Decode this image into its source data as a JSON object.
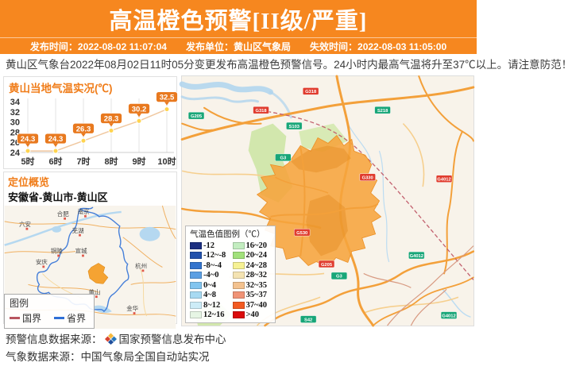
{
  "header": {
    "title": "高温橙色预警[II级/严重]",
    "issue_time_label": "发布时间：",
    "issue_time": "2022-08-02 11:07:04",
    "issuer_label": "发布单位：",
    "issuer": "黄山区气象局",
    "expire_time_label": "失效时间：",
    "expire_time": "2022-08-03 11:05:00"
  },
  "warning_text": "黄山区气象台2022年08月02日11时05分变更发布高温橙色预警信号。24小时内最高气温将升至37℃以上。请注意防范！",
  "chart_data": {
    "type": "line",
    "title": "黄山当地气温实况(℃)",
    "categories": [
      "5时",
      "6时",
      "7时",
      "8时",
      "9时",
      "10时"
    ],
    "values": [
      24.3,
      24.3,
      26.3,
      28.3,
      30.2,
      32.5
    ],
    "ylim": [
      24,
      34
    ],
    "yticks": [
      24,
      26,
      28,
      30,
      32,
      34
    ],
    "xlabel": "",
    "ylabel": "",
    "grid": "vertical-only",
    "line_color": "#f0c8a0",
    "marker_color": "#ffd44f",
    "label_bg": "#e8791f"
  },
  "location": {
    "title": "定位概览",
    "path": "安徽省-黄山市-黄山区",
    "cities": [
      "南京",
      "合肥",
      "六安",
      "芜湖",
      "铜陵",
      "宣城",
      "安庆",
      "黄山",
      "杭州",
      "金华"
    ],
    "legend": {
      "title": "图例",
      "items": [
        {
          "label": "国界",
          "color": "#b85560"
        },
        {
          "label": "省界",
          "color": "#2f6fd6"
        }
      ]
    }
  },
  "main_map": {
    "temp_legend": {
      "title": "气温色值图例（℃）",
      "items": [
        {
          "range": "-12",
          "color": "#1c2f80"
        },
        {
          "range": "-12~-8",
          "color": "#2251ab"
        },
        {
          "range": "-8~-4",
          "color": "#3374cd"
        },
        {
          "range": "-4~0",
          "color": "#5b9fe3"
        },
        {
          "range": "0~4",
          "color": "#82c5ef"
        },
        {
          "range": "4~8",
          "color": "#a8daf2"
        },
        {
          "range": "8~12",
          "color": "#cdecf7"
        },
        {
          "range": "12~16",
          "color": "#e6f5e4"
        },
        {
          "range": "16~20",
          "color": "#c3edc0"
        },
        {
          "range": "20~24",
          "color": "#a2e17c"
        },
        {
          "range": "24~28",
          "color": "#f6f193"
        },
        {
          "range": "28~32",
          "color": "#f4e3b2"
        },
        {
          "range": "32~35",
          "color": "#f3c28f"
        },
        {
          "range": "35~37",
          "color": "#f09376"
        },
        {
          "range": "37~40",
          "color": "#f25a21"
        },
        {
          "range": ">40",
          "color": "#da0b0b"
        }
      ]
    },
    "road_badges": [
      {
        "label": "G318",
        "type": "red"
      },
      {
        "label": "G205",
        "type": "green"
      },
      {
        "label": "G318",
        "type": "red"
      },
      {
        "label": "S103",
        "type": "green"
      },
      {
        "label": "G3",
        "type": "green"
      },
      {
        "label": "S218",
        "type": "green"
      },
      {
        "label": "G330",
        "type": "red"
      },
      {
        "label": "G4012",
        "type": "red"
      },
      {
        "label": "G530",
        "type": "red"
      },
      {
        "label": "G205",
        "type": "red"
      },
      {
        "label": "G3",
        "type": "green"
      },
      {
        "label": "G4012",
        "type": "green"
      },
      {
        "label": "S42",
        "type": "green"
      },
      {
        "label": "G4012",
        "type": "green"
      }
    ],
    "badge_colors": {
      "red": "#e03c2e",
      "green": "#18a678"
    }
  },
  "footer": {
    "line1_label": "预警信息数据来源：",
    "line1_source": "国家预警信息发布中心",
    "line2": "气象数据来源：中国气象局全国自动站实况"
  }
}
